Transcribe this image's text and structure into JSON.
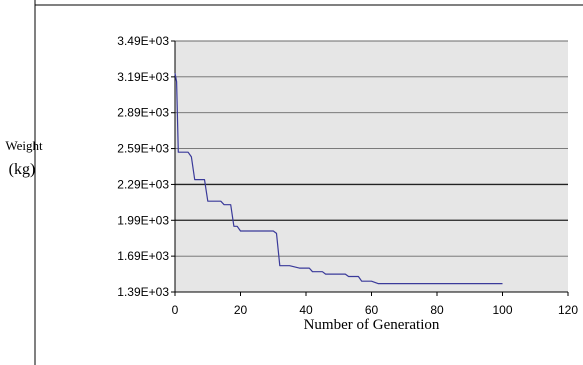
{
  "chart_data": {
    "type": "line",
    "xlabel": "Number of Generation",
    "ylabel": [
      "Weight",
      "(kg)"
    ],
    "xlim": [
      0,
      120
    ],
    "ylim": [
      1390,
      3490
    ],
    "x_ticks": [
      0,
      20,
      40,
      60,
      80,
      100,
      120
    ],
    "x_tick_labels": [
      "0",
      "20",
      "40",
      "60",
      "80",
      "100",
      "120"
    ],
    "y_ticks": [
      1390,
      1690,
      1990,
      2290,
      2590,
      2890,
      3190,
      3490
    ],
    "y_tick_labels": [
      "1.39E+03",
      "1.69E+03",
      "1.99E+03",
      "2.29E+03",
      "2.59E+03",
      "2.89E+03",
      "3.19E+03",
      "3.49E+03"
    ],
    "grid": "horizontal",
    "plot_background": "#e6e6e6",
    "series": [
      {
        "color": "#3a3a9a",
        "points": [
          [
            0,
            3220
          ],
          [
            0.5,
            3150
          ],
          [
            1,
            2560
          ],
          [
            4,
            2560
          ],
          [
            5,
            2520
          ],
          [
            6,
            2330
          ],
          [
            9,
            2330
          ],
          [
            10,
            2150
          ],
          [
            14,
            2150
          ],
          [
            15,
            2120
          ],
          [
            17,
            2120
          ],
          [
            18,
            1940
          ],
          [
            19,
            1940
          ],
          [
            20,
            1900
          ],
          [
            30,
            1900
          ],
          [
            31,
            1880
          ],
          [
            32,
            1610
          ],
          [
            35,
            1610
          ],
          [
            38,
            1590
          ],
          [
            41,
            1590
          ],
          [
            42,
            1560
          ],
          [
            45,
            1560
          ],
          [
            46,
            1540
          ],
          [
            52,
            1540
          ],
          [
            53,
            1520
          ],
          [
            56,
            1520
          ],
          [
            57,
            1480
          ],
          [
            60,
            1480
          ],
          [
            62,
            1460
          ],
          [
            100,
            1460
          ]
        ]
      }
    ]
  }
}
